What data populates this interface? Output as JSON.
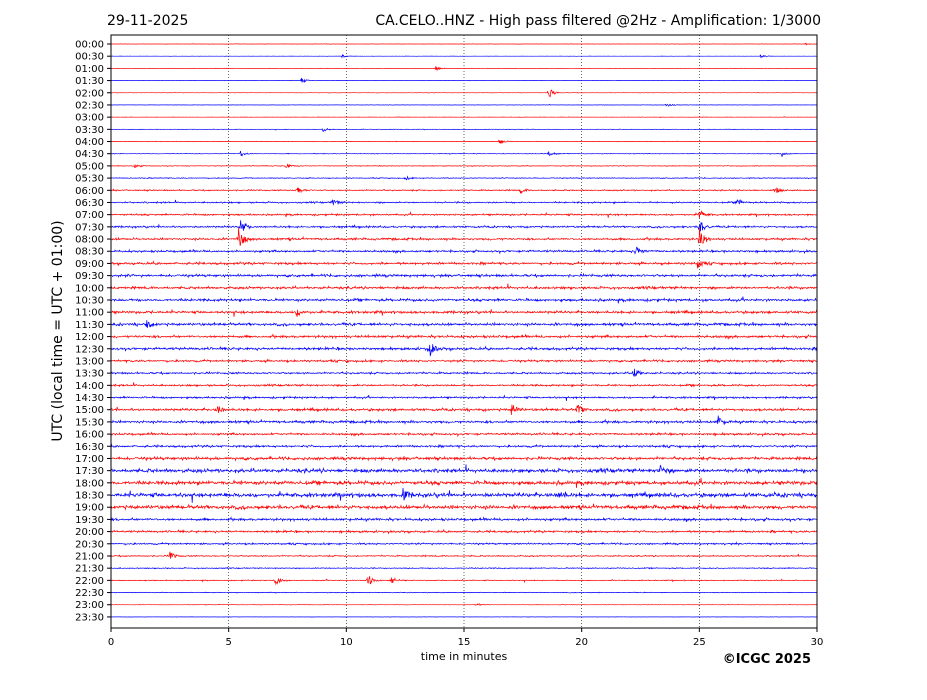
{
  "header": {
    "date": "29-11-2025",
    "title": "CA.CELO..HNZ - High pass filtered @2Hz - Amplification: 1/3000"
  },
  "copyright": "©ICGC 2025",
  "colors": {
    "even_row": "#ff0000",
    "odd_row": "#0000ff"
  },
  "chart_data": {
    "type": "line",
    "title": "CA.CELO..HNZ - High pass filtered @2Hz - Amplification: 1/3000",
    "xlabel": "time in minutes",
    "ylabel": "UTC (local time = UTC + 01:00)",
    "xlim": [
      0,
      30
    ],
    "x_ticks": [
      "0",
      "5",
      "10",
      "15",
      "20",
      "25",
      "30"
    ],
    "grid": "vertical dotted at each 5 minutes",
    "row_labels": [
      "00:00",
      "00:30",
      "01:00",
      "01:30",
      "02:00",
      "02:30",
      "03:00",
      "03:30",
      "04:00",
      "04:30",
      "05:00",
      "05:30",
      "06:00",
      "06:30",
      "07:00",
      "07:30",
      "08:00",
      "08:30",
      "09:00",
      "09:30",
      "10:00",
      "10:30",
      "11:00",
      "11:30",
      "12:00",
      "12:30",
      "13:00",
      "13:30",
      "14:00",
      "14:30",
      "15:00",
      "15:30",
      "16:00",
      "16:30",
      "17:00",
      "17:30",
      "18:00",
      "18:30",
      "19:00",
      "19:30",
      "20:00",
      "20:30",
      "21:00",
      "21:30",
      "22:00",
      "22:30",
      "23:00",
      "23:30"
    ],
    "noise_level": [
      0.03,
      0.03,
      0.03,
      0.03,
      0.04,
      0.04,
      0.04,
      0.05,
      0.06,
      0.07,
      0.08,
      0.1,
      0.15,
      0.18,
      0.2,
      0.22,
      0.25,
      0.25,
      0.28,
      0.3,
      0.3,
      0.3,
      0.3,
      0.32,
      0.3,
      0.3,
      0.25,
      0.22,
      0.22,
      0.22,
      0.3,
      0.3,
      0.25,
      0.25,
      0.35,
      0.45,
      0.45,
      0.5,
      0.45,
      0.3,
      0.25,
      0.2,
      0.15,
      0.12,
      0.1,
      0.08,
      0.05,
      0.03
    ],
    "events": [
      {
        "row": 0,
        "minute": 29.5,
        "amp": 0.15
      },
      {
        "row": 1,
        "minute": 9.8,
        "amp": 0.3
      },
      {
        "row": 1,
        "minute": 27.6,
        "amp": 0.35
      },
      {
        "row": 2,
        "minute": 13.8,
        "amp": 0.35
      },
      {
        "row": 3,
        "minute": 8.1,
        "amp": 0.5
      },
      {
        "row": 4,
        "minute": 18.6,
        "amp": 1.0
      },
      {
        "row": 5,
        "minute": 23.6,
        "amp": 0.4
      },
      {
        "row": 7,
        "minute": 9.0,
        "amp": 0.45
      },
      {
        "row": 8,
        "minute": 16.5,
        "amp": 0.6
      },
      {
        "row": 9,
        "minute": 5.5,
        "amp": 0.5
      },
      {
        "row": 9,
        "minute": 18.6,
        "amp": 0.5
      },
      {
        "row": 9,
        "minute": 28.5,
        "amp": 0.45
      },
      {
        "row": 10,
        "minute": 1.0,
        "amp": 0.4
      },
      {
        "row": 10,
        "minute": 7.4,
        "amp": 0.45
      },
      {
        "row": 11,
        "minute": 12.5,
        "amp": 0.35
      },
      {
        "row": 12,
        "minute": 7.9,
        "amp": 0.8
      },
      {
        "row": 12,
        "minute": 17.4,
        "amp": 0.5
      },
      {
        "row": 12,
        "minute": 28.2,
        "amp": 0.6
      },
      {
        "row": 13,
        "minute": 9.4,
        "amp": 0.6
      },
      {
        "row": 13,
        "minute": 26.6,
        "amp": 0.7
      },
      {
        "row": 14,
        "minute": 25.0,
        "amp": 0.9
      },
      {
        "row": 15,
        "minute": 5.5,
        "amp": 1.6
      },
      {
        "row": 15,
        "minute": 25.0,
        "amp": 1.3
      },
      {
        "row": 16,
        "minute": 5.4,
        "amp": 2.5
      },
      {
        "row": 16,
        "minute": 25.0,
        "amp": 2.0
      },
      {
        "row": 17,
        "minute": 22.3,
        "amp": 1.0
      },
      {
        "row": 18,
        "minute": 24.9,
        "amp": 1.0
      },
      {
        "row": 22,
        "minute": 7.9,
        "amp": 0.8
      },
      {
        "row": 23,
        "minute": 1.5,
        "amp": 0.8
      },
      {
        "row": 25,
        "minute": 13.5,
        "amp": 1.6
      },
      {
        "row": 27,
        "minute": 22.2,
        "amp": 1.0
      },
      {
        "row": 30,
        "minute": 17.0,
        "amp": 1.2
      },
      {
        "row": 30,
        "minute": 4.5,
        "amp": 0.8
      },
      {
        "row": 30,
        "minute": 19.8,
        "amp": 1.0
      },
      {
        "row": 31,
        "minute": 25.8,
        "amp": 1.0
      },
      {
        "row": 35,
        "minute": 23.3,
        "amp": 1.0
      },
      {
        "row": 37,
        "minute": 19.0,
        "amp": 1.0
      },
      {
        "row": 37,
        "minute": 12.4,
        "amp": 1.0
      },
      {
        "row": 42,
        "minute": 2.5,
        "amp": 0.8
      },
      {
        "row": 44,
        "minute": 7.0,
        "amp": 1.0
      },
      {
        "row": 44,
        "minute": 10.9,
        "amp": 1.2
      },
      {
        "row": 44,
        "minute": 11.9,
        "amp": 0.8
      },
      {
        "row": 46,
        "minute": 15.5,
        "amp": 0.3
      }
    ]
  }
}
